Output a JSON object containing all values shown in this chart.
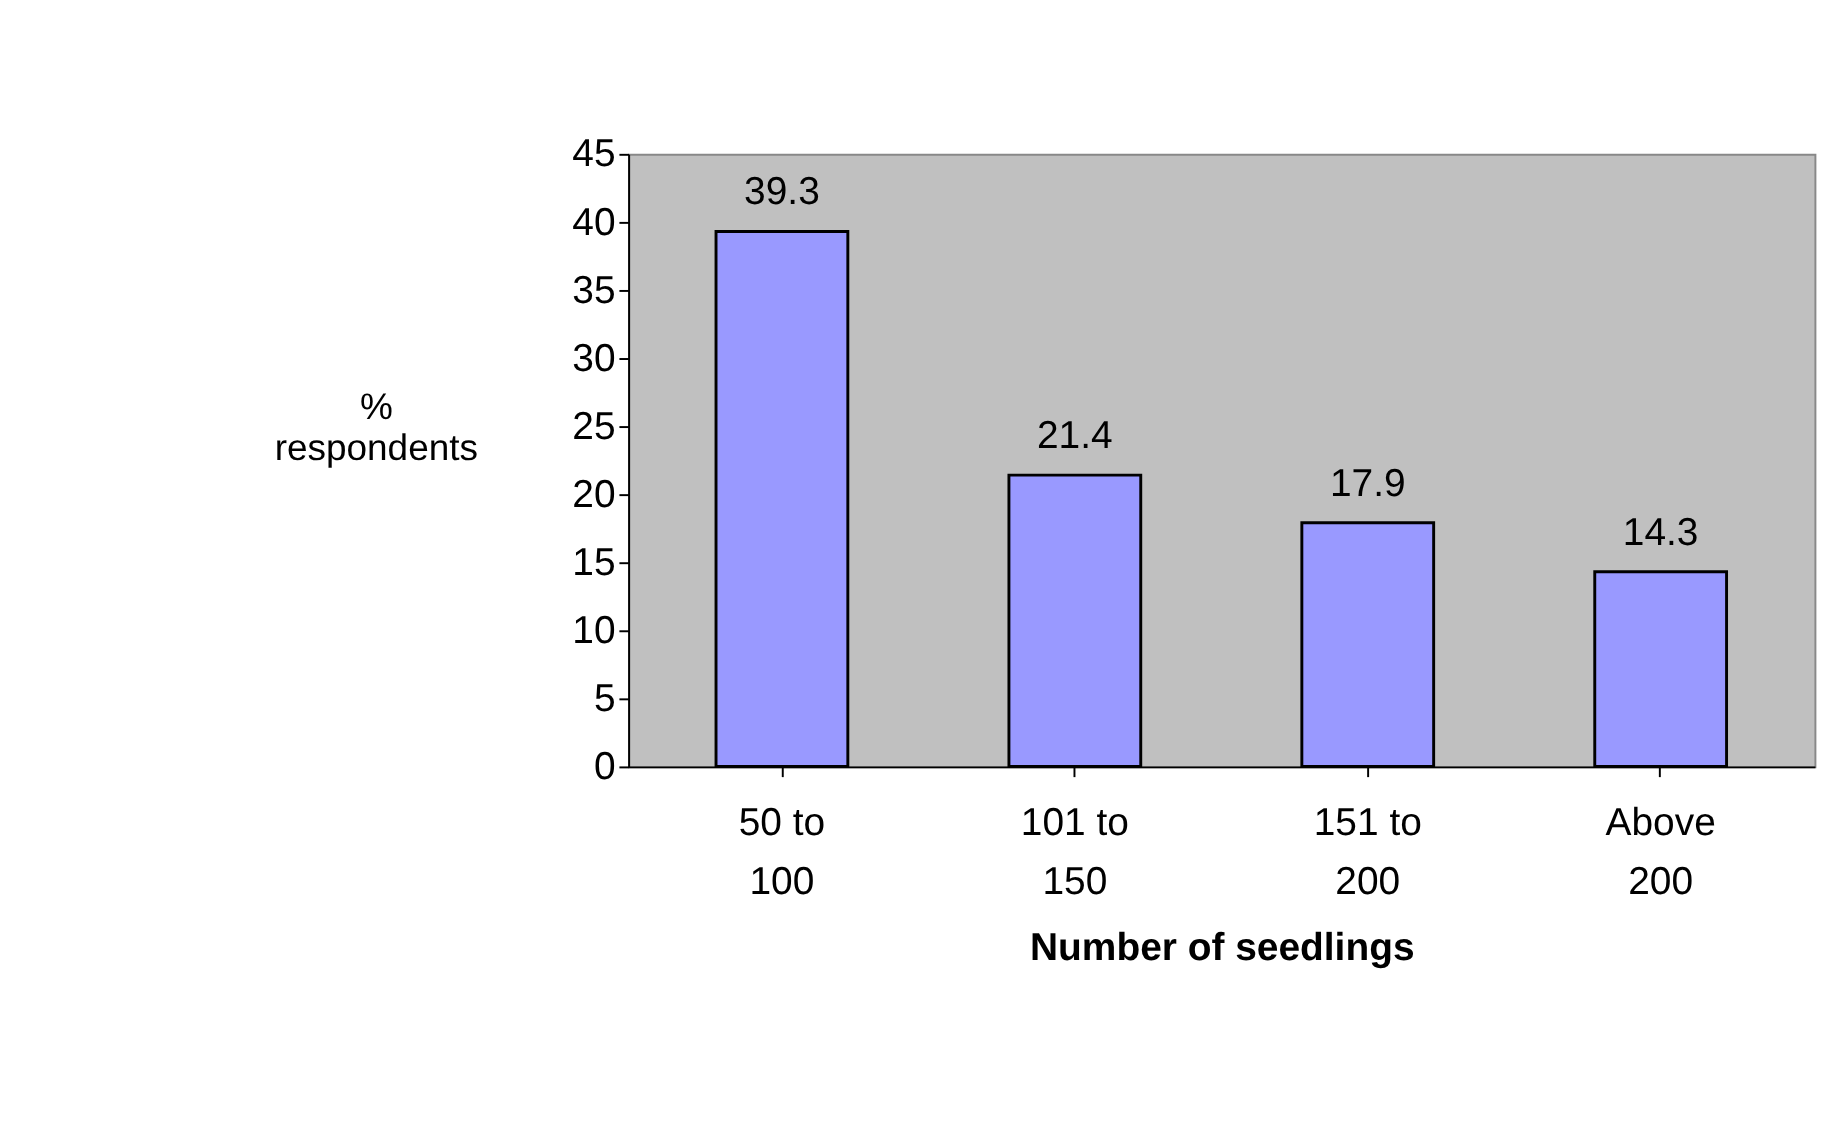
{
  "chart_data": {
    "type": "bar",
    "xlabel": "Number of seedlings",
    "ylabel": "% respondents",
    "categories": [
      "50 to 100",
      "101 to 150",
      "151 to 200",
      "Above 200"
    ],
    "values": [
      39.3,
      21.4,
      17.9,
      14.3
    ],
    "color": "#9999ff",
    "ylim": [
      0,
      45
    ],
    "yticks": [
      0,
      5,
      10,
      15,
      20,
      25,
      30,
      35,
      40,
      45
    ],
    "grid": false,
    "data_labels": true
  }
}
